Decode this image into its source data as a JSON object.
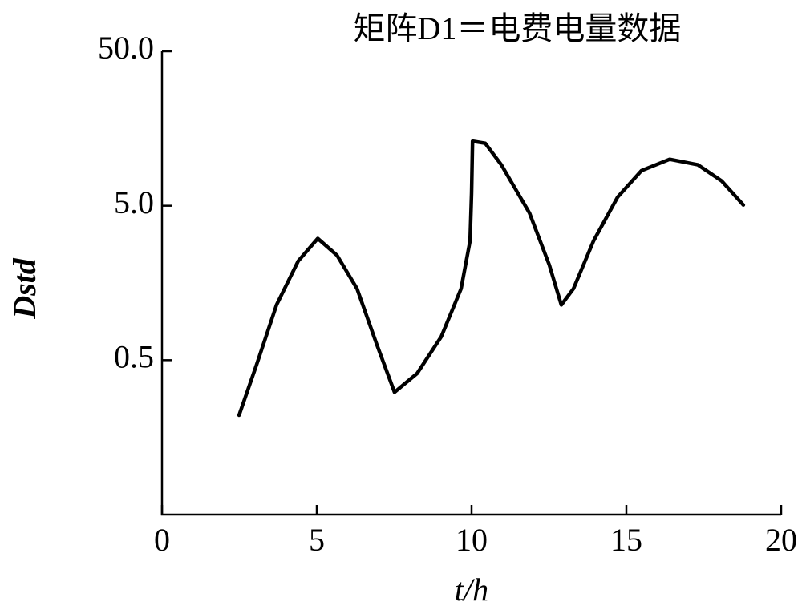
{
  "chart_data": {
    "type": "line",
    "title": "矩阵D1＝电费电量数据",
    "x_label": "t/h",
    "y_label": "Dstd",
    "x": [
      2.49,
      3.06,
      3.7,
      4.4,
      5.03,
      5.65,
      6.3,
      6.94,
      7.51,
      8.24,
      9.02,
      9.66,
      9.95,
      10.0,
      10.03,
      10.44,
      10.96,
      11.87,
      12.51,
      12.9,
      13.29,
      13.94,
      14.72,
      15.49,
      16.4,
      17.31,
      18.08,
      18.78
    ],
    "series": [
      {
        "color": "#000000",
        "values": [
          0.22,
          0.47,
          1.14,
          2.19,
          3.07,
          2.39,
          1.45,
          0.63,
          0.31,
          0.41,
          0.71,
          1.45,
          2.96,
          6.05,
          13.1,
          12.7,
          9.2,
          4.49,
          2.07,
          1.14,
          1.45,
          2.96,
          5.7,
          8.45,
          10.0,
          9.2,
          7.24,
          5.06
        ]
      }
    ],
    "xlim": [
      0,
      20
    ],
    "xticks": [
      0,
      5,
      10,
      15,
      20
    ],
    "ylim": [
      0.05,
      50
    ],
    "yticks": [
      0.5,
      {
        "value": 5,
        "label": "5.0"
      },
      {
        "value": 50,
        "label": "50.0"
      }
    ],
    "y_scale": "log",
    "grid": false
  }
}
